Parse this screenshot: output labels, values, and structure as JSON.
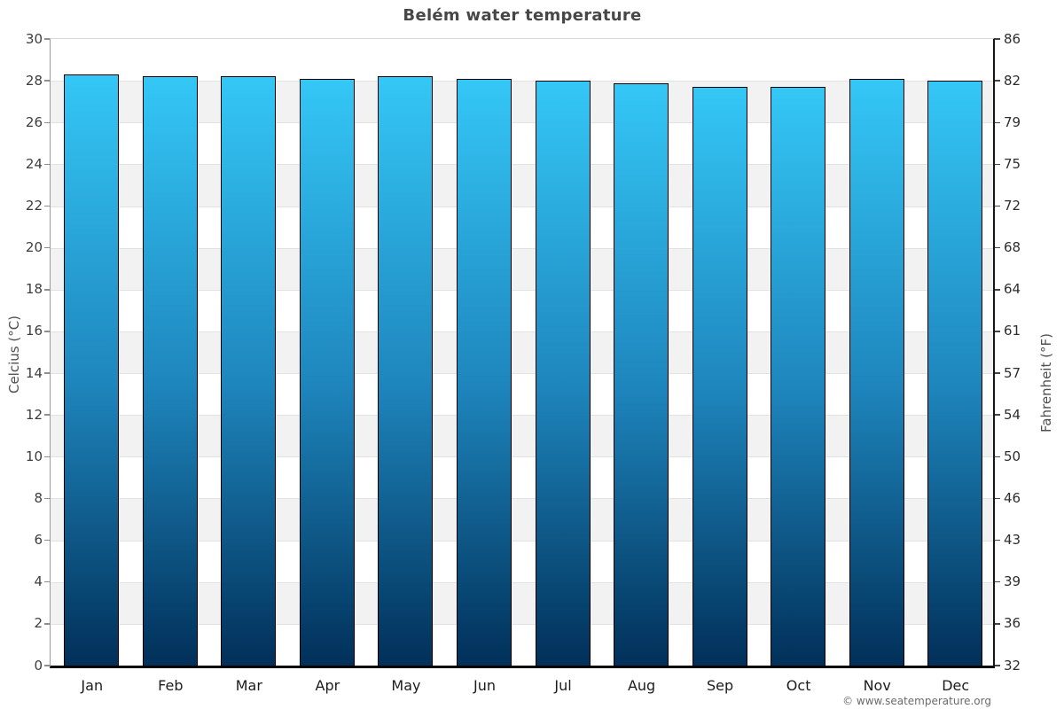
{
  "title": "Belém water temperature",
  "watermark": "© www.seatemperature.org",
  "chart_data": {
    "type": "bar",
    "title": "Belém water temperature",
    "categories": [
      "Jan",
      "Feb",
      "Mar",
      "Apr",
      "May",
      "Jun",
      "Jul",
      "Aug",
      "Sep",
      "Oct",
      "Nov",
      "Dec"
    ],
    "values": [
      28.3,
      28.2,
      28.2,
      28.1,
      28.2,
      28.1,
      28.0,
      27.9,
      27.7,
      27.7,
      28.1,
      28.0
    ],
    "unit": "°C",
    "xlabel": "",
    "ylabel_left": "Celcius (°C)",
    "ylabel_right": "Fahrenheit (°F)",
    "ylim_left": [
      0,
      30
    ],
    "ytick_step": 2,
    "yticks_left": [
      0,
      2,
      4,
      6,
      8,
      10,
      12,
      14,
      16,
      18,
      20,
      22,
      24,
      26,
      28,
      30
    ],
    "yticks_right_labels": [
      "32",
      "36",
      "39",
      "43",
      "46",
      "50",
      "54",
      "57",
      "61",
      "64",
      "68",
      "72",
      "75",
      "79",
      "82",
      "86"
    ],
    "grid": "alternating horizontal bands every 2°C",
    "legend": "none",
    "colors": {
      "bar_top": "#34c7f6",
      "bar_mid": "#1e86bd",
      "bar_bottom": "#013059",
      "bar_border": "#000000",
      "band": "#f2f2f2",
      "gridline": "#e2e2e2"
    }
  }
}
